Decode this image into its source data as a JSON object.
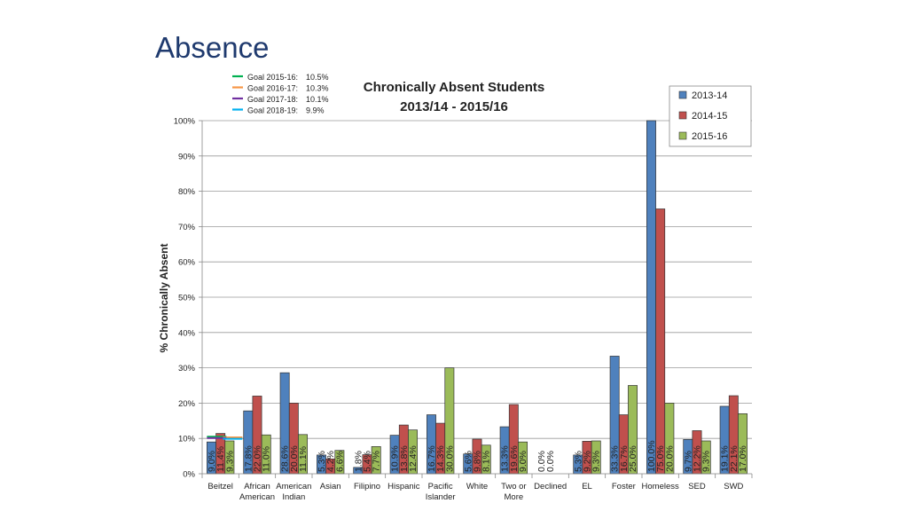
{
  "slide": {
    "title": "Absence"
  },
  "goals": [
    {
      "label": "Goal 2015-16:",
      "value": "10.5%",
      "color": "#00b050",
      "y": 10.5
    },
    {
      "label": "Goal 2016-17:",
      "value": "10.3%",
      "color": "#f79646",
      "y": 10.3
    },
    {
      "label": "Goal 2017-18:",
      "value": "10.1%",
      "color": "#7030a0",
      "y": 10.1
    },
    {
      "label": "Goal 2018-19:",
      "value": "9.9%",
      "color": "#00b0f0",
      "y": 9.9
    }
  ],
  "chart_data": {
    "type": "bar",
    "title_line1": "Chronically Absent Students",
    "title_line2": "2013/14 - 2015/16",
    "ylabel": "% Chronically Absent",
    "ylim": [
      0,
      100
    ],
    "yticks": [
      "0%",
      "10%",
      "20%",
      "30%",
      "40%",
      "50%",
      "60%",
      "70%",
      "80%",
      "90%",
      "100%"
    ],
    "grid": true,
    "legend_position": "top-right",
    "categories": [
      [
        "Beitzel"
      ],
      [
        "African",
        "American"
      ],
      [
        "American",
        "Indian"
      ],
      [
        "Asian"
      ],
      [
        "Filipino"
      ],
      [
        "Hispanic"
      ],
      [
        "Pacific",
        "Islander"
      ],
      [
        "White"
      ],
      [
        "Two or",
        "More"
      ],
      [
        "Declined"
      ],
      [
        "EL"
      ],
      [
        "Foster"
      ],
      [
        "Homeless"
      ],
      [
        "SED"
      ],
      [
        "SWD"
      ]
    ],
    "series": [
      {
        "name": "2013-14",
        "color": "#4f81bd",
        "values": [
          9.0,
          17.8,
          28.6,
          5.3,
          1.8,
          10.9,
          16.7,
          5.6,
          13.3,
          0.0,
          5.3,
          33.3,
          100.0,
          9.7,
          19.1
        ],
        "labels": [
          "9.0%",
          "17.8%",
          "28.6%",
          "5.3%",
          "1.8%",
          "10.9%",
          "16.7%",
          "5.6%",
          "13.3%",
          "0.0%",
          "5.3%",
          "33.3%",
          "100.0%",
          "9.7%",
          "19.1%"
        ]
      },
      {
        "name": "2014-15",
        "color": "#c0504d",
        "values": [
          11.4,
          22.0,
          20.0,
          4.2,
          5.4,
          13.8,
          14.3,
          9.8,
          19.6,
          0.0,
          9.2,
          16.7,
          75.0,
          12.2,
          22.1
        ],
        "labels": [
          "11.4%",
          "22.0%",
          "20.0%",
          "4.2%",
          "5.4%",
          "13.8%",
          "14.3%",
          "9.8%",
          "19.6%",
          "0.0%",
          "9.2%",
          "16.7%",
          "75.0%",
          "12.2%",
          "22.1%"
        ]
      },
      {
        "name": "2015-16",
        "color": "#9bbb59",
        "values": [
          9.3,
          11.0,
          11.1,
          6.6,
          7.7,
          12.4,
          30.0,
          8.1,
          9.0,
          null,
          9.3,
          25.0,
          20.0,
          9.3,
          17.0
        ],
        "labels": [
          "9.3%",
          "11.0%",
          "11.1%",
          "6.6%",
          "7.7%",
          "12.4%",
          "30.0%",
          "8.1%",
          "9.0%",
          "",
          "9.3%",
          "25.0%",
          "20.0%",
          "9.3%",
          "17.0%"
        ]
      }
    ]
  }
}
